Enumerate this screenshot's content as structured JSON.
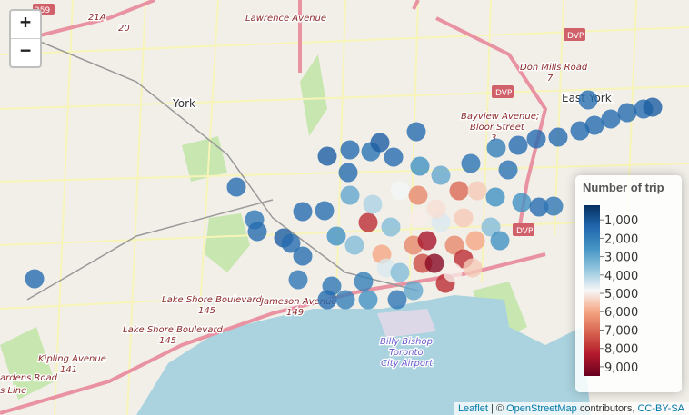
{
  "zoom": {
    "in": "+",
    "out": "−"
  },
  "map_labels": [
    "Lawrence Avenue",
    "York",
    "East York",
    "Don Mills Road",
    "7",
    "DVP",
    "DVP",
    "DVP",
    "Bayview Avenue;",
    "Bloor Street",
    "3",
    "Lake Shore Boulevard",
    "145",
    "Lake Shore Boulevard",
    "145",
    "Jameson Avenue",
    "149",
    "Kipling Avenue",
    "141",
    "ardens Road",
    "s Line",
    "Billy Bishop",
    "Toronto",
    "City Airport",
    "359",
    "21A",
    "20"
  ],
  "points": [
    {
      "lon": -79.5486,
      "lat": 43.6586,
      "trips": 1500
    },
    {
      "lon": -79.482,
      "lat": 43.6788,
      "trips": 1500
    },
    {
      "lon": -79.476,
      "lat": 43.6716,
      "trips": 1800
    },
    {
      "lon": -79.4751,
      "lat": 43.669,
      "trips": 1500
    },
    {
      "lon": -79.4664,
      "lat": 43.6676,
      "trips": 1200
    },
    {
      "lon": -79.464,
      "lat": 43.6664,
      "trips": 1500
    },
    {
      "lon": -79.4601,
      "lat": 43.6636,
      "trips": 1600
    },
    {
      "lon": -79.4616,
      "lat": 43.6584,
      "trips": 1800
    },
    {
      "lon": -79.4601,
      "lat": 43.6734,
      "trips": 1500
    },
    {
      "lon": -79.4529,
      "lat": 43.6736,
      "trips": 1600
    },
    {
      "lon": -79.452,
      "lat": 43.6856,
      "trips": 1200
    },
    {
      "lon": -79.4445,
      "lat": 43.687,
      "trips": 1500
    },
    {
      "lon": -79.4451,
      "lat": 43.682,
      "trips": 1500
    },
    {
      "lon": -79.4376,
      "lat": 43.6866,
      "trips": 1700
    },
    {
      "lon": -79.4346,
      "lat": 43.6886,
      "trips": 1200
    },
    {
      "lon": -79.4301,
      "lat": 43.6854,
      "trips": 1500
    },
    {
      "lon": -79.4226,
      "lat": 43.691,
      "trips": 1500
    },
    {
      "lon": -79.4214,
      "lat": 43.6834,
      "trips": 2500
    },
    {
      "lon": -79.4145,
      "lat": 43.6814,
      "trips": 3000
    },
    {
      "lon": -79.4046,
      "lat": 43.684,
      "trips": 1700
    },
    {
      "lon": -79.3962,
      "lat": 43.6874,
      "trips": 2000
    },
    {
      "lon": -79.3923,
      "lat": 43.6826,
      "trips": 1700
    },
    {
      "lon": -79.389,
      "lat": 43.688,
      "trips": 1500
    },
    {
      "lon": -79.383,
      "lat": 43.6894,
      "trips": 1500
    },
    {
      "lon": -79.3758,
      "lat": 43.6898,
      "trips": 1500
    },
    {
      "lon": -79.3686,
      "lat": 43.6912,
      "trips": 1500
    },
    {
      "lon": -79.3638,
      "lat": 43.6924,
      "trips": 1500
    },
    {
      "lon": -79.3584,
      "lat": 43.6938,
      "trips": 1500
    },
    {
      "lon": -79.353,
      "lat": 43.6952,
      "trips": 1500
    },
    {
      "lon": -79.3476,
      "lat": 43.696,
      "trips": 1500
    },
    {
      "lon": -79.3446,
      "lat": 43.6964,
      "trips": 1200
    },
    {
      "lon": -79.3659,
      "lat": 43.698,
      "trips": 1600
    },
    {
      "lon": -79.3965,
      "lat": 43.6766,
      "trips": 2500
    },
    {
      "lon": -79.3878,
      "lat": 43.6754,
      "trips": 2500
    },
    {
      "lon": -79.3821,
      "lat": 43.6744,
      "trips": 1500
    },
    {
      "lon": -79.3773,
      "lat": 43.6746,
      "trips": 1800
    },
    {
      "lon": -79.4385,
      "lat": 43.671,
      "trips": 8000
    },
    {
      "lon": -79.431,
      "lat": 43.67,
      "trips": 3500
    },
    {
      "lon": -79.4235,
      "lat": 43.666,
      "trips": 6500
    },
    {
      "lon": -79.4205,
      "lat": 43.662,
      "trips": 7500
    },
    {
      "lon": -79.4166,
      "lat": 43.662,
      "trips": 9000
    },
    {
      "lon": -79.413,
      "lat": 43.6576,
      "trips": 8000
    },
    {
      "lon": -79.419,
      "lat": 43.667,
      "trips": 8500
    },
    {
      "lon": -79.41,
      "lat": 43.666,
      "trips": 6500
    },
    {
      "lon": -79.407,
      "lat": 43.663,
      "trips": 8000
    },
    {
      "lon": -79.4031,
      "lat": 43.667,
      "trips": 6000
    },
    {
      "lon": -79.4085,
      "lat": 43.678,
      "trips": 7000
    },
    {
      "lon": -79.4025,
      "lat": 43.678,
      "trips": 5500
    },
    {
      "lon": -79.422,
      "lat": 43.677,
      "trips": 6500
    },
    {
      "lon": -79.428,
      "lat": 43.678,
      "trips": 4800
    },
    {
      "lon": -79.434,
      "lat": 43.664,
      "trips": 6000
    },
    {
      "lon": -79.4325,
      "lat": 43.661,
      "trips": 4500
    },
    {
      "lon": -79.428,
      "lat": 43.66,
      "trips": 3500
    },
    {
      "lon": -79.44,
      "lat": 43.658,
      "trips": 2000
    },
    {
      "lon": -79.4505,
      "lat": 43.657,
      "trips": 1800
    },
    {
      "lon": -79.452,
      "lat": 43.654,
      "trips": 1500
    },
    {
      "lon": -79.446,
      "lat": 43.654,
      "trips": 2000
    },
    {
      "lon": -79.4385,
      "lat": 43.654,
      "trips": 2500
    },
    {
      "lon": -79.4289,
      "lat": 43.654,
      "trips": 1800
    },
    {
      "lon": -79.4235,
      "lat": 43.656,
      "trips": 3000
    },
    {
      "lon": -79.404,
      "lat": 43.661,
      "trips": 5500
    },
    {
      "lon": -79.4106,
      "lat": 43.66,
      "trips": 5000
    },
    {
      "lon": -79.4145,
      "lat": 43.671,
      "trips": 4500
    },
    {
      "lon": -79.398,
      "lat": 43.67,
      "trips": 3500
    },
    {
      "lon": -79.395,
      "lat": 43.667,
      "trips": 2500
    },
    {
      "lon": -79.443,
      "lat": 43.666,
      "trips": 3500
    },
    {
      "lon": -79.449,
      "lat": 43.668,
      "trips": 2500
    },
    {
      "lon": -79.437,
      "lat": 43.675,
      "trips": 4000
    },
    {
      "lon": -79.4445,
      "lat": 43.677,
      "trips": 3000
    },
    {
      "lon": -79.422,
      "lat": 43.672,
      "trips": 5000
    },
    {
      "lon": -79.407,
      "lat": 43.672,
      "trips": 5500
    },
    {
      "lon": -79.416,
      "lat": 43.674,
      "trips": 5200
    }
  ],
  "legend": {
    "title": "Number of trip",
    "range": [
      200,
      9500
    ],
    "colors": [
      "#053061",
      "#2166ac",
      "#4393c3",
      "#92c5de",
      "#f7f7f7",
      "#f4a582",
      "#d6604d",
      "#b2182b",
      "#67001f"
    ],
    "ticks": [
      {
        "value": 1000,
        "label": "1,000"
      },
      {
        "value": 2000,
        "label": "2,000"
      },
      {
        "value": 3000,
        "label": "3,000"
      },
      {
        "value": 4000,
        "label": "4,000"
      },
      {
        "value": 5000,
        "label": "5,000"
      },
      {
        "value": 6000,
        "label": "6,000"
      },
      {
        "value": 7000,
        "label": "7,000"
      },
      {
        "value": 8000,
        "label": "8,000"
      },
      {
        "value": 9000,
        "label": "9,000"
      }
    ]
  },
  "attribution": {
    "leaflet": "Leaflet",
    "sep": "| ©",
    "osm": "OpenStreetMap",
    "contrib": "contributors,",
    "license": "CC-BY-SA"
  }
}
